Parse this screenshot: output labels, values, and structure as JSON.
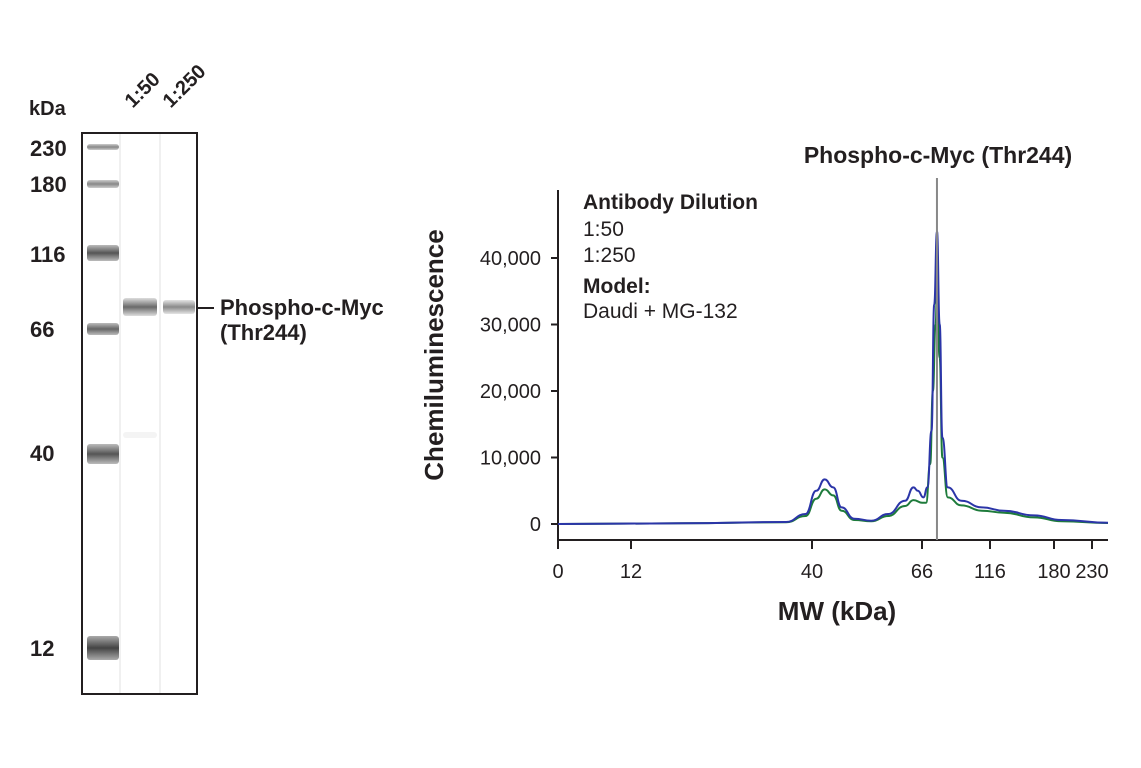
{
  "blot": {
    "unit_label": "kDa",
    "lanes": [
      "1:50",
      "1:250"
    ],
    "ladder": [
      {
        "label": "230",
        "kda": 230
      },
      {
        "label": "180",
        "kda": 180
      },
      {
        "label": "116",
        "kda": 116
      },
      {
        "label": "66",
        "kda": 66
      },
      {
        "label": "40",
        "kda": 40
      },
      {
        "label": "12",
        "kda": 12
      }
    ],
    "band_label_line1": "Phospho-c-Myc",
    "band_label_line2": "(Thr244)"
  },
  "chart_data": {
    "type": "line",
    "title": "Phospho-c-Myc (Thr244)",
    "xlabel": "MW (kDa)",
    "ylabel": "Chemiluminescence",
    "x_ticks": [
      {
        "label": "0",
        "kda": 0
      },
      {
        "label": "12",
        "kda": 12
      },
      {
        "label": "40",
        "kda": 40
      },
      {
        "label": "66",
        "kda": 66
      },
      {
        "label": "116",
        "kda": 116
      },
      {
        "label": "180",
        "kda": 180
      },
      {
        "label": "230",
        "kda": 230
      }
    ],
    "y_ticks": [
      {
        "label": "0",
        "value": 0
      },
      {
        "label": "10,000",
        "value": 10000
      },
      {
        "label": "20,000",
        "value": 20000
      },
      {
        "label": "30,000",
        "value": 30000
      },
      {
        "label": "40,000",
        "value": 40000
      }
    ],
    "ylim": [
      0,
      50000
    ],
    "marker_kda": 77,
    "legend": {
      "heading": "Antibody Dilution",
      "model_heading": "Model:",
      "model_value": "Daudi + MG-132"
    },
    "series": [
      {
        "name": "1:50",
        "color": "#2b35a8",
        "points": [
          [
            0,
            0
          ],
          [
            20,
            100
          ],
          [
            36,
            300
          ],
          [
            39,
            1500
          ],
          [
            41,
            5000
          ],
          [
            43,
            6700
          ],
          [
            45,
            5500
          ],
          [
            47,
            2500
          ],
          [
            50,
            800
          ],
          [
            54,
            500
          ],
          [
            58,
            1500
          ],
          [
            62,
            3500
          ],
          [
            64,
            5500
          ],
          [
            65,
            5000
          ],
          [
            67,
            4000
          ],
          [
            70,
            5500
          ],
          [
            73,
            14000
          ],
          [
            75,
            33000
          ],
          [
            77,
            44000
          ],
          [
            79,
            30000
          ],
          [
            81,
            13000
          ],
          [
            85,
            5500
          ],
          [
            95,
            3500
          ],
          [
            110,
            2500
          ],
          [
            130,
            2000
          ],
          [
            160,
            1300
          ],
          [
            190,
            600
          ],
          [
            260,
            200
          ]
        ]
      },
      {
        "name": "1:250",
        "color": "#1e7b3b",
        "points": [
          [
            0,
            0
          ],
          [
            20,
            100
          ],
          [
            36,
            250
          ],
          [
            39,
            1200
          ],
          [
            41,
            3800
          ],
          [
            43,
            5200
          ],
          [
            45,
            4300
          ],
          [
            47,
            2000
          ],
          [
            50,
            600
          ],
          [
            54,
            400
          ],
          [
            58,
            1200
          ],
          [
            62,
            2700
          ],
          [
            64,
            3600
          ],
          [
            66,
            3200
          ],
          [
            69,
            3200
          ],
          [
            72,
            9000
          ],
          [
            74,
            20000
          ],
          [
            76,
            30000
          ],
          [
            77,
            35000
          ],
          [
            79,
            25000
          ],
          [
            81,
            10000
          ],
          [
            85,
            4000
          ],
          [
            95,
            2800
          ],
          [
            110,
            2000
          ],
          [
            130,
            1700
          ],
          [
            160,
            1000
          ],
          [
            190,
            400
          ],
          [
            260,
            150
          ]
        ]
      }
    ]
  }
}
